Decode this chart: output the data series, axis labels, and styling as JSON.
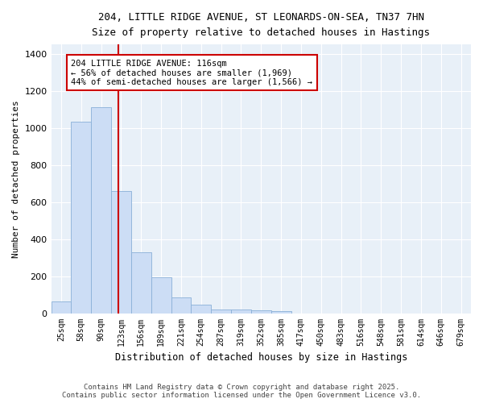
{
  "title_line1": "204, LITTLE RIDGE AVENUE, ST LEONARDS-ON-SEA, TN37 7HN",
  "title_line2": "Size of property relative to detached houses in Hastings",
  "xlabel": "Distribution of detached houses by size in Hastings",
  "ylabel": "Number of detached properties",
  "categories": [
    "25sqm",
    "58sqm",
    "90sqm",
    "123sqm",
    "156sqm",
    "189sqm",
    "221sqm",
    "254sqm",
    "287sqm",
    "319sqm",
    "352sqm",
    "385sqm",
    "417sqm",
    "450sqm",
    "483sqm",
    "516sqm",
    "548sqm",
    "581sqm",
    "614sqm",
    "646sqm",
    "679sqm"
  ],
  "values": [
    65,
    1035,
    1110,
    660,
    330,
    195,
    85,
    45,
    20,
    20,
    15,
    10,
    0,
    0,
    0,
    0,
    0,
    0,
    0,
    0,
    0
  ],
  "bar_color": "#ccddf5",
  "bar_edge_color": "#8ab0d8",
  "red_line_x": 2.87,
  "annotation_line1": "204 LITTLE RIDGE AVENUE: 116sqm",
  "annotation_line2": "← 56% of detached houses are smaller (1,969)",
  "annotation_line3": "44% of semi-detached houses are larger (1,566) →",
  "annotation_box_facecolor": "#ffffff",
  "annotation_box_edgecolor": "#cc0000",
  "ylim_max": 1450,
  "yticks": [
    0,
    200,
    400,
    600,
    800,
    1000,
    1200,
    1400
  ],
  "plot_bg_color": "#e8f0f8",
  "fig_bg_color": "#ffffff",
  "grid_color": "#ffffff",
  "footer_line1": "Contains HM Land Registry data © Crown copyright and database right 2025.",
  "footer_line2": "Contains public sector information licensed under the Open Government Licence v3.0."
}
